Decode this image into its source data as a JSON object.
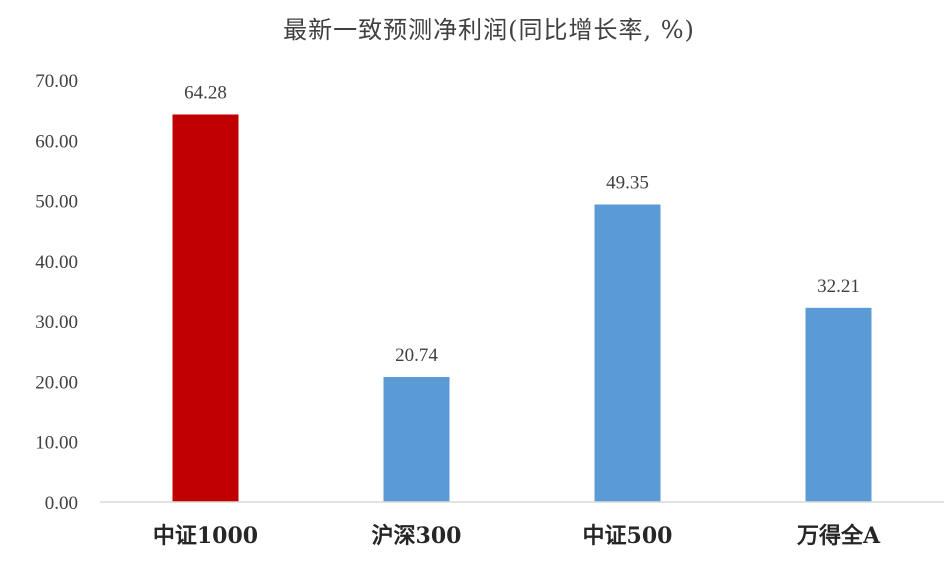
{
  "chart_data": {
    "type": "bar",
    "title": "最新一致预测净利润(同比增长率, %)",
    "categories": [
      "中证1000",
      "沪深300",
      "中证500",
      "万得全A"
    ],
    "values": [
      64.28,
      20.74,
      49.35,
      32.21
    ],
    "data_labels": [
      "64.28",
      "20.74",
      "49.35",
      "32.21"
    ],
    "yticks": [
      "0.00",
      "10.00",
      "20.00",
      "30.00",
      "40.00",
      "50.00",
      "60.00",
      "70.00"
    ],
    "ylim": [
      0,
      70
    ],
    "grid": false,
    "legend": "none",
    "bar_colors": [
      "#C00000",
      "#5B9BD5",
      "#5B9BD5",
      "#5B9BD5"
    ],
    "axis_color": "#D9D9D9"
  }
}
